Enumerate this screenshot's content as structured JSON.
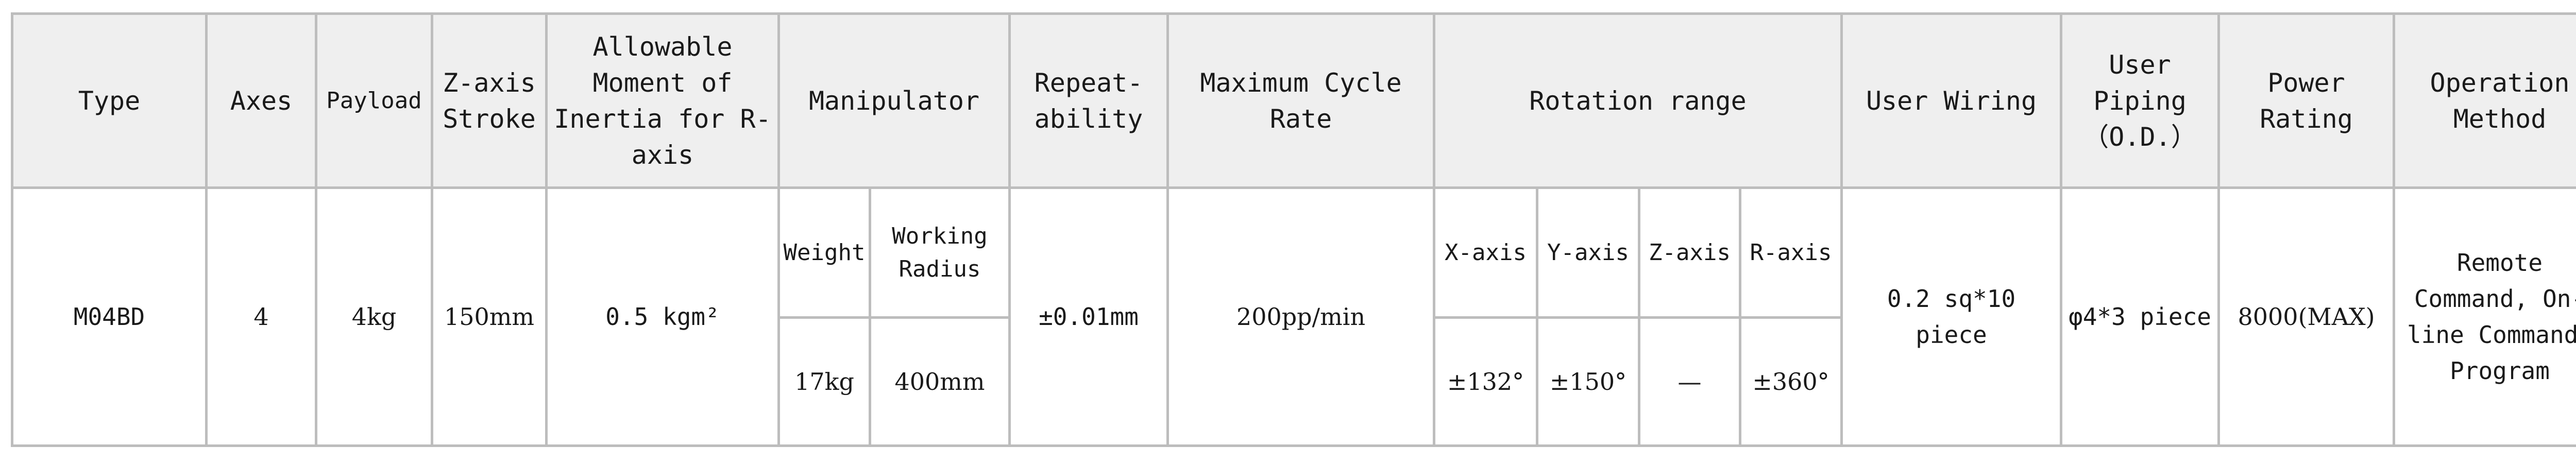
{
  "headers": {
    "type": "Type",
    "axes": "Axes",
    "payload": "Payload",
    "z_stroke": "Z-axis Stroke",
    "moment": "Allowable Moment of Inertia for R-axis",
    "manipulator": "Manipulator",
    "repeatability": "Repeat-ability",
    "cycle_rate": "Maximum Cycle Rate",
    "rotation_range": "Rotation range",
    "user_wiring": "User Wiring",
    "user_piping": "User Piping（O.D.）",
    "power_rating": "Power Rating",
    "operation_method": "Operation Method"
  },
  "subheaders": {
    "weight": "Weight",
    "working_radius": "Working Radius",
    "x_axis": "X-axis",
    "y_axis": "Y-axis",
    "z_axis": "Z-axis",
    "r_axis": "R-axis"
  },
  "row": {
    "type": "M04BD",
    "axes": "4",
    "payload": "4kg",
    "z_stroke": "150mm",
    "moment": "0.5 kgm²",
    "weight": "17kg",
    "working_radius": "400mm",
    "repeatability": "±0.01mm",
    "cycle_rate": "200pp/min",
    "x_axis": "±132°",
    "y_axis": "±150°",
    "z_axis": "—",
    "r_axis": "±360°",
    "user_wiring": "0.2 sq*10 piece",
    "user_piping": "φ4*3 piece",
    "power_rating": "8000(MAX)",
    "operation_method": "Remote Command, On-line Command, Program"
  }
}
